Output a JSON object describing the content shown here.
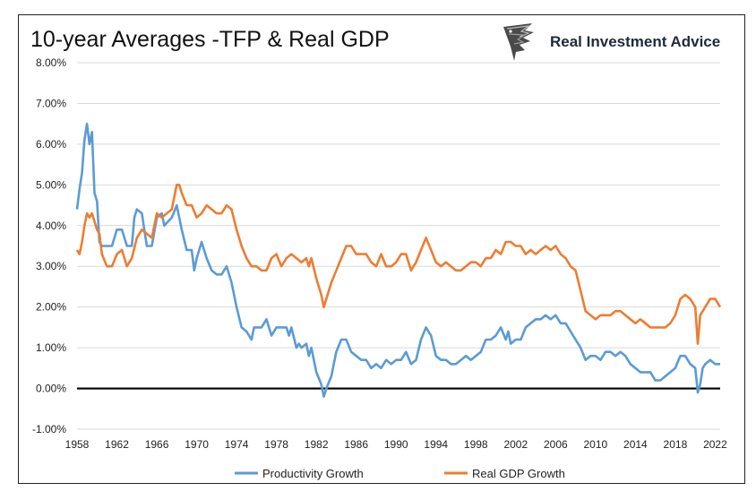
{
  "title": "10-year Averages -TFP & Real GDP",
  "brand": {
    "name": "Real Investment Advice",
    "logo_icon": "eagle-head-logo-icon"
  },
  "chart_data": {
    "type": "line",
    "title": "10-year Averages -TFP & Real GDP",
    "xlabel": "",
    "ylabel": "",
    "xlim": [
      1958,
      2022.5
    ],
    "ylim": [
      -1,
      8
    ],
    "x_ticks": [
      "1958",
      "1962",
      "1966",
      "1970",
      "1974",
      "1978",
      "1982",
      "1986",
      "1990",
      "1994",
      "1998",
      "2002",
      "2006",
      "2010",
      "2014",
      "2018",
      "2022"
    ],
    "y_ticks": [
      "-1.00%",
      "0.00%",
      "1.00%",
      "2.00%",
      "3.00%",
      "4.00%",
      "5.00%",
      "6.00%",
      "7.00%",
      "8.00%"
    ],
    "zero_line": true,
    "grid": "horizontal",
    "legend_position": "bottom",
    "series": [
      {
        "name": "Productivity Growth",
        "color": "#5b9bd5",
        "points": [
          [
            1958.0,
            4.4
          ],
          [
            1958.25,
            4.9
          ],
          [
            1958.5,
            5.3
          ],
          [
            1958.75,
            6.1
          ],
          [
            1959.0,
            6.5
          ],
          [
            1959.25,
            6.0
          ],
          [
            1959.5,
            6.3
          ],
          [
            1959.75,
            4.8
          ],
          [
            1960.0,
            4.6
          ],
          [
            1960.25,
            3.6
          ],
          [
            1960.5,
            3.5
          ],
          [
            1961.0,
            3.5
          ],
          [
            1961.5,
            3.5
          ],
          [
            1962.0,
            3.9
          ],
          [
            1962.5,
            3.9
          ],
          [
            1963.0,
            3.5
          ],
          [
            1963.5,
            3.5
          ],
          [
            1963.75,
            4.2
          ],
          [
            1964.0,
            4.4
          ],
          [
            1964.5,
            4.3
          ],
          [
            1965.0,
            3.5
          ],
          [
            1965.5,
            3.5
          ],
          [
            1966.0,
            4.2
          ],
          [
            1966.5,
            4.3
          ],
          [
            1966.75,
            4.0
          ],
          [
            1967.5,
            4.2
          ],
          [
            1968.0,
            4.5
          ],
          [
            1968.5,
            3.9
          ],
          [
            1969.0,
            3.4
          ],
          [
            1969.5,
            3.4
          ],
          [
            1969.75,
            2.9
          ],
          [
            1970.0,
            3.2
          ],
          [
            1970.5,
            3.6
          ],
          [
            1971.0,
            3.2
          ],
          [
            1971.5,
            2.9
          ],
          [
            1972.0,
            2.8
          ],
          [
            1972.5,
            2.8
          ],
          [
            1973.0,
            3.0
          ],
          [
            1973.5,
            2.6
          ],
          [
            1974.0,
            2.0
          ],
          [
            1974.5,
            1.5
          ],
          [
            1975.0,
            1.4
          ],
          [
            1975.5,
            1.2
          ],
          [
            1975.75,
            1.5
          ],
          [
            1976.0,
            1.5
          ],
          [
            1976.5,
            1.5
          ],
          [
            1977.0,
            1.7
          ],
          [
            1977.5,
            1.3
          ],
          [
            1978.0,
            1.5
          ],
          [
            1978.5,
            1.5
          ],
          [
            1979.0,
            1.5
          ],
          [
            1979.25,
            1.3
          ],
          [
            1979.5,
            1.5
          ],
          [
            1980.0,
            1.0
          ],
          [
            1980.25,
            1.1
          ],
          [
            1980.5,
            1.0
          ],
          [
            1981.0,
            1.1
          ],
          [
            1981.25,
            0.8
          ],
          [
            1981.5,
            1.0
          ],
          [
            1982.0,
            0.4
          ],
          [
            1982.5,
            0.1
          ],
          [
            1982.75,
            -0.2
          ],
          [
            1983.0,
            0.0
          ],
          [
            1983.5,
            0.3
          ],
          [
            1984.0,
            0.9
          ],
          [
            1984.5,
            1.2
          ],
          [
            1985.0,
            1.2
          ],
          [
            1985.5,
            0.9
          ],
          [
            1986.0,
            0.8
          ],
          [
            1986.5,
            0.7
          ],
          [
            1987.0,
            0.7
          ],
          [
            1987.5,
            0.5
          ],
          [
            1988.0,
            0.6
          ],
          [
            1988.5,
            0.5
          ],
          [
            1989.0,
            0.7
          ],
          [
            1989.5,
            0.6
          ],
          [
            1990.0,
            0.7
          ],
          [
            1990.5,
            0.7
          ],
          [
            1991.0,
            0.9
          ],
          [
            1991.5,
            0.6
          ],
          [
            1992.0,
            0.7
          ],
          [
            1992.5,
            1.2
          ],
          [
            1993.0,
            1.5
          ],
          [
            1993.5,
            1.3
          ],
          [
            1994.0,
            0.8
          ],
          [
            1994.5,
            0.7
          ],
          [
            1995.0,
            0.7
          ],
          [
            1995.5,
            0.6
          ],
          [
            1996.0,
            0.6
          ],
          [
            1996.5,
            0.7
          ],
          [
            1997.0,
            0.8
          ],
          [
            1997.5,
            0.7
          ],
          [
            1998.0,
            0.8
          ],
          [
            1998.5,
            0.9
          ],
          [
            1999.0,
            1.2
          ],
          [
            1999.5,
            1.2
          ],
          [
            2000.0,
            1.3
          ],
          [
            2000.5,
            1.5
          ],
          [
            2001.0,
            1.2
          ],
          [
            2001.25,
            1.4
          ],
          [
            2001.5,
            1.1
          ],
          [
            2002.0,
            1.2
          ],
          [
            2002.5,
            1.2
          ],
          [
            2003.0,
            1.5
          ],
          [
            2003.5,
            1.6
          ],
          [
            2004.0,
            1.7
          ],
          [
            2004.5,
            1.7
          ],
          [
            2005.0,
            1.8
          ],
          [
            2005.5,
            1.7
          ],
          [
            2006.0,
            1.8
          ],
          [
            2006.5,
            1.6
          ],
          [
            2007.0,
            1.6
          ],
          [
            2007.5,
            1.4
          ],
          [
            2008.0,
            1.2
          ],
          [
            2008.5,
            1.0
          ],
          [
            2009.0,
            0.7
          ],
          [
            2009.5,
            0.8
          ],
          [
            2010.0,
            0.8
          ],
          [
            2010.5,
            0.7
          ],
          [
            2011.0,
            0.9
          ],
          [
            2011.5,
            0.9
          ],
          [
            2012.0,
            0.8
          ],
          [
            2012.5,
            0.9
          ],
          [
            2013.0,
            0.8
          ],
          [
            2013.5,
            0.6
          ],
          [
            2014.0,
            0.5
          ],
          [
            2014.5,
            0.4
          ],
          [
            2015.0,
            0.4
          ],
          [
            2015.5,
            0.4
          ],
          [
            2016.0,
            0.2
          ],
          [
            2016.5,
            0.2
          ],
          [
            2017.0,
            0.3
          ],
          [
            2017.5,
            0.4
          ],
          [
            2018.0,
            0.5
          ],
          [
            2018.5,
            0.8
          ],
          [
            2019.0,
            0.8
          ],
          [
            2019.5,
            0.6
          ],
          [
            2020.0,
            0.5
          ],
          [
            2020.25,
            -0.1
          ],
          [
            2020.5,
            0.1
          ],
          [
            2020.75,
            0.5
          ],
          [
            2021.0,
            0.6
          ],
          [
            2021.5,
            0.7
          ],
          [
            2022.0,
            0.6
          ],
          [
            2022.5,
            0.6
          ]
        ]
      },
      {
        "name": "Real GDP Growth",
        "color": "#ed7d31",
        "points": [
          [
            1958.0,
            3.4
          ],
          [
            1958.25,
            3.3
          ],
          [
            1958.5,
            3.6
          ],
          [
            1958.75,
            4.0
          ],
          [
            1959.0,
            4.3
          ],
          [
            1959.25,
            4.2
          ],
          [
            1959.5,
            4.3
          ],
          [
            1960.0,
            3.9
          ],
          [
            1960.25,
            3.8
          ],
          [
            1960.5,
            3.3
          ],
          [
            1961.0,
            3.0
          ],
          [
            1961.5,
            3.0
          ],
          [
            1962.0,
            3.3
          ],
          [
            1962.5,
            3.4
          ],
          [
            1963.0,
            3.0
          ],
          [
            1963.5,
            3.2
          ],
          [
            1964.0,
            3.7
          ],
          [
            1964.5,
            3.9
          ],
          [
            1965.0,
            3.8
          ],
          [
            1965.5,
            3.7
          ],
          [
            1966.0,
            4.3
          ],
          [
            1966.5,
            4.2
          ],
          [
            1967.0,
            4.3
          ],
          [
            1967.5,
            4.4
          ],
          [
            1968.0,
            5.0
          ],
          [
            1968.25,
            5.0
          ],
          [
            1968.5,
            4.8
          ],
          [
            1969.0,
            4.5
          ],
          [
            1969.5,
            4.5
          ],
          [
            1970.0,
            4.2
          ],
          [
            1970.5,
            4.3
          ],
          [
            1971.0,
            4.5
          ],
          [
            1971.5,
            4.4
          ],
          [
            1972.0,
            4.3
          ],
          [
            1972.5,
            4.3
          ],
          [
            1973.0,
            4.5
          ],
          [
            1973.5,
            4.4
          ],
          [
            1974.0,
            3.9
          ],
          [
            1974.5,
            3.5
          ],
          [
            1975.0,
            3.2
          ],
          [
            1975.5,
            3.0
          ],
          [
            1976.0,
            3.0
          ],
          [
            1976.5,
            2.9
          ],
          [
            1977.0,
            2.9
          ],
          [
            1977.5,
            3.2
          ],
          [
            1978.0,
            3.3
          ],
          [
            1978.5,
            3.0
          ],
          [
            1979.0,
            3.2
          ],
          [
            1979.5,
            3.3
          ],
          [
            1980.0,
            3.2
          ],
          [
            1980.5,
            3.1
          ],
          [
            1981.0,
            3.2
          ],
          [
            1981.25,
            3.0
          ],
          [
            1981.5,
            3.2
          ],
          [
            1982.0,
            2.7
          ],
          [
            1982.5,
            2.3
          ],
          [
            1982.75,
            2.0
          ],
          [
            1983.0,
            2.2
          ],
          [
            1983.5,
            2.6
          ],
          [
            1984.0,
            2.9
          ],
          [
            1984.5,
            3.2
          ],
          [
            1985.0,
            3.5
          ],
          [
            1985.5,
            3.5
          ],
          [
            1986.0,
            3.3
          ],
          [
            1986.5,
            3.3
          ],
          [
            1987.0,
            3.3
          ],
          [
            1987.5,
            3.1
          ],
          [
            1988.0,
            3.0
          ],
          [
            1988.5,
            3.3
          ],
          [
            1989.0,
            3.0
          ],
          [
            1989.5,
            3.0
          ],
          [
            1990.0,
            3.1
          ],
          [
            1990.5,
            3.3
          ],
          [
            1991.0,
            3.3
          ],
          [
            1991.5,
            2.9
          ],
          [
            1992.0,
            3.1
          ],
          [
            1992.5,
            3.4
          ],
          [
            1993.0,
            3.7
          ],
          [
            1993.5,
            3.4
          ],
          [
            1994.0,
            3.1
          ],
          [
            1994.5,
            3.0
          ],
          [
            1995.0,
            3.1
          ],
          [
            1995.5,
            3.0
          ],
          [
            1996.0,
            2.9
          ],
          [
            1996.5,
            2.9
          ],
          [
            1997.0,
            3.0
          ],
          [
            1997.5,
            3.1
          ],
          [
            1998.0,
            3.1
          ],
          [
            1998.5,
            3.0
          ],
          [
            1999.0,
            3.2
          ],
          [
            1999.5,
            3.2
          ],
          [
            2000.0,
            3.4
          ],
          [
            2000.5,
            3.3
          ],
          [
            2001.0,
            3.6
          ],
          [
            2001.5,
            3.6
          ],
          [
            2002.0,
            3.5
          ],
          [
            2002.5,
            3.5
          ],
          [
            2003.0,
            3.3
          ],
          [
            2003.5,
            3.4
          ],
          [
            2004.0,
            3.3
          ],
          [
            2004.5,
            3.4
          ],
          [
            2005.0,
            3.5
          ],
          [
            2005.5,
            3.4
          ],
          [
            2006.0,
            3.5
          ],
          [
            2006.5,
            3.3
          ],
          [
            2007.0,
            3.2
          ],
          [
            2007.5,
            3.0
          ],
          [
            2008.0,
            2.9
          ],
          [
            2008.5,
            2.4
          ],
          [
            2009.0,
            1.9
          ],
          [
            2009.5,
            1.8
          ],
          [
            2010.0,
            1.7
          ],
          [
            2010.5,
            1.8
          ],
          [
            2011.0,
            1.8
          ],
          [
            2011.5,
            1.8
          ],
          [
            2012.0,
            1.9
          ],
          [
            2012.5,
            1.9
          ],
          [
            2013.0,
            1.8
          ],
          [
            2013.5,
            1.7
          ],
          [
            2014.0,
            1.6
          ],
          [
            2014.5,
            1.7
          ],
          [
            2015.0,
            1.6
          ],
          [
            2015.5,
            1.5
          ],
          [
            2016.0,
            1.5
          ],
          [
            2016.5,
            1.5
          ],
          [
            2017.0,
            1.5
          ],
          [
            2017.5,
            1.6
          ],
          [
            2018.0,
            1.8
          ],
          [
            2018.5,
            2.2
          ],
          [
            2019.0,
            2.3
          ],
          [
            2019.5,
            2.2
          ],
          [
            2020.0,
            2.0
          ],
          [
            2020.25,
            1.1
          ],
          [
            2020.5,
            1.8
          ],
          [
            2021.0,
            2.0
          ],
          [
            2021.5,
            2.2
          ],
          [
            2022.0,
            2.2
          ],
          [
            2022.5,
            2.0
          ]
        ]
      }
    ]
  }
}
